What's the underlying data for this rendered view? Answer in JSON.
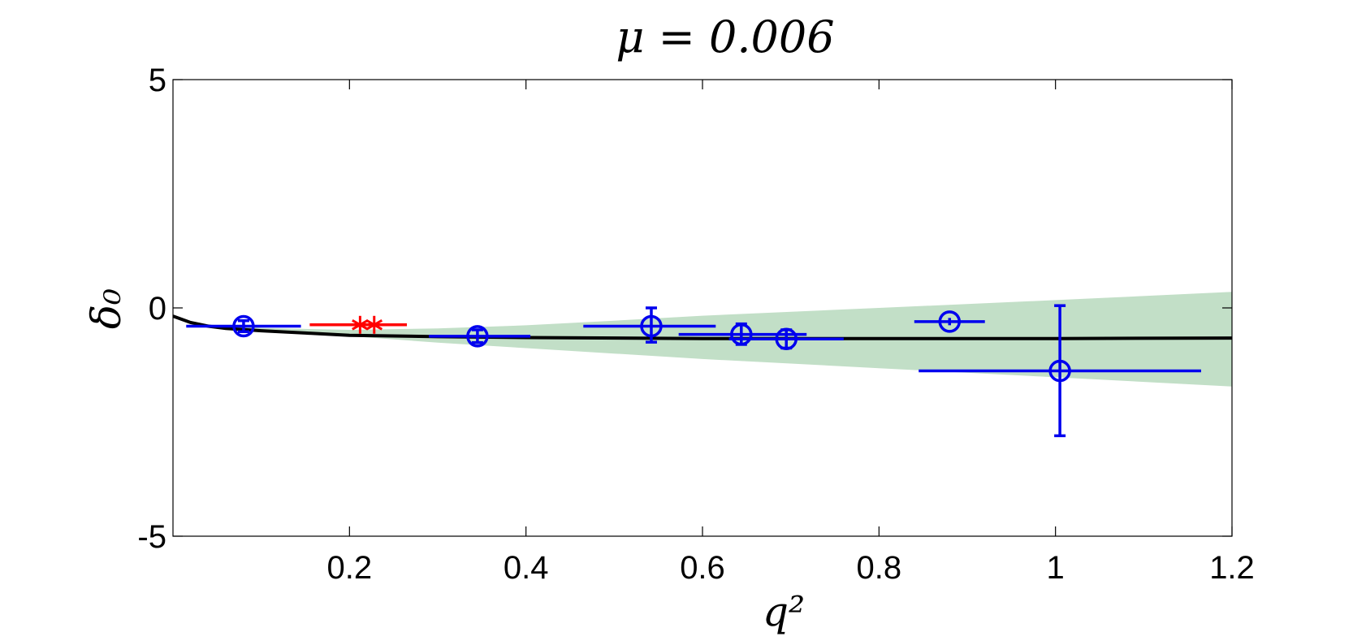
{
  "chart_data": {
    "type": "scatter",
    "title": "μ = 0.006",
    "xlabel": "q²",
    "ylabel": "δ₀",
    "xlim": [
      0,
      1.2
    ],
    "ylim": [
      -5,
      5
    ],
    "xticks": [
      {
        "value": 0.2,
        "label": "0.2"
      },
      {
        "value": 0.4,
        "label": "0.4"
      },
      {
        "value": 0.6,
        "label": "0.6"
      },
      {
        "value": 0.8,
        "label": "0.8"
      },
      {
        "value": 1.0,
        "label": "1"
      },
      {
        "value": 1.2,
        "label": "1.2"
      }
    ],
    "yticks": [
      {
        "value": 5,
        "label": "5"
      },
      {
        "value": 0,
        "label": "0"
      },
      {
        "value": -5,
        "label": "-5"
      }
    ],
    "grid": false,
    "colors": {
      "points": "#0000ee",
      "red_points": "#ff0000",
      "fit": "#000000",
      "band": "#c2dfc7"
    },
    "series": [
      {
        "marker": "circle",
        "color": "#0000ee",
        "points": [
          {
            "x": 0.08,
            "y": -0.4,
            "xlo": 0.015,
            "xhi": 0.145,
            "ylo": -0.52,
            "yhi": -0.28
          },
          {
            "x": 0.345,
            "y": -0.62,
            "xlo": 0.29,
            "xhi": 0.405,
            "ylo": -0.76,
            "yhi": -0.48
          },
          {
            "x": 0.542,
            "y": -0.4,
            "xlo": 0.465,
            "xhi": 0.615,
            "ylo": -0.75,
            "yhi": 0.0
          },
          {
            "x": 0.644,
            "y": -0.58,
            "xlo": 0.573,
            "xhi": 0.718,
            "ylo": -0.8,
            "yhi": -0.35
          },
          {
            "x": 0.695,
            "y": -0.68,
            "xlo": 0.63,
            "xhi": 0.76,
            "ylo": -0.88,
            "yhi": -0.48
          },
          {
            "x": 0.88,
            "y": -0.3,
            "xlo": 0.84,
            "xhi": 0.92,
            "ylo": -0.38,
            "yhi": -0.22
          },
          {
            "x": 1.005,
            "y": -1.38,
            "xlo": 0.845,
            "xhi": 1.165,
            "ylo": -2.8,
            "yhi": 0.05
          }
        ]
      },
      {
        "marker": "asterisk",
        "color": "#ff0000",
        "points": [
          {
            "x": 0.212,
            "y": -0.37,
            "xlo": 0.155,
            "xhi": 0.265,
            "ylo": -0.4,
            "yhi": -0.34
          },
          {
            "x": 0.228,
            "y": -0.37,
            "xlo": 0.155,
            "xhi": 0.265,
            "ylo": -0.4,
            "yhi": -0.34
          }
        ]
      }
    ],
    "fit_curve": {
      "x": [
        0,
        0.02,
        0.04,
        0.06,
        0.1,
        0.15,
        0.2,
        0.3,
        0.4,
        0.6,
        0.8,
        1.0,
        1.2
      ],
      "y": [
        -0.18,
        -0.32,
        -0.4,
        -0.45,
        -0.5,
        -0.55,
        -0.6,
        -0.63,
        -0.65,
        -0.67,
        -0.67,
        -0.67,
        -0.66
      ]
    },
    "band": {
      "x": [
        0.02,
        0.05,
        0.1,
        0.2,
        0.3,
        0.4,
        0.5,
        0.6,
        0.8,
        1.0,
        1.2
      ],
      "upper": [
        -0.32,
        -0.38,
        -0.44,
        -0.48,
        -0.45,
        -0.38,
        -0.28,
        -0.17,
        0.0,
        0.17,
        0.35
      ],
      "lower": [
        -0.32,
        -0.4,
        -0.5,
        -0.62,
        -0.76,
        -0.88,
        -1.0,
        -1.12,
        -1.32,
        -1.52,
        -1.72
      ]
    }
  }
}
